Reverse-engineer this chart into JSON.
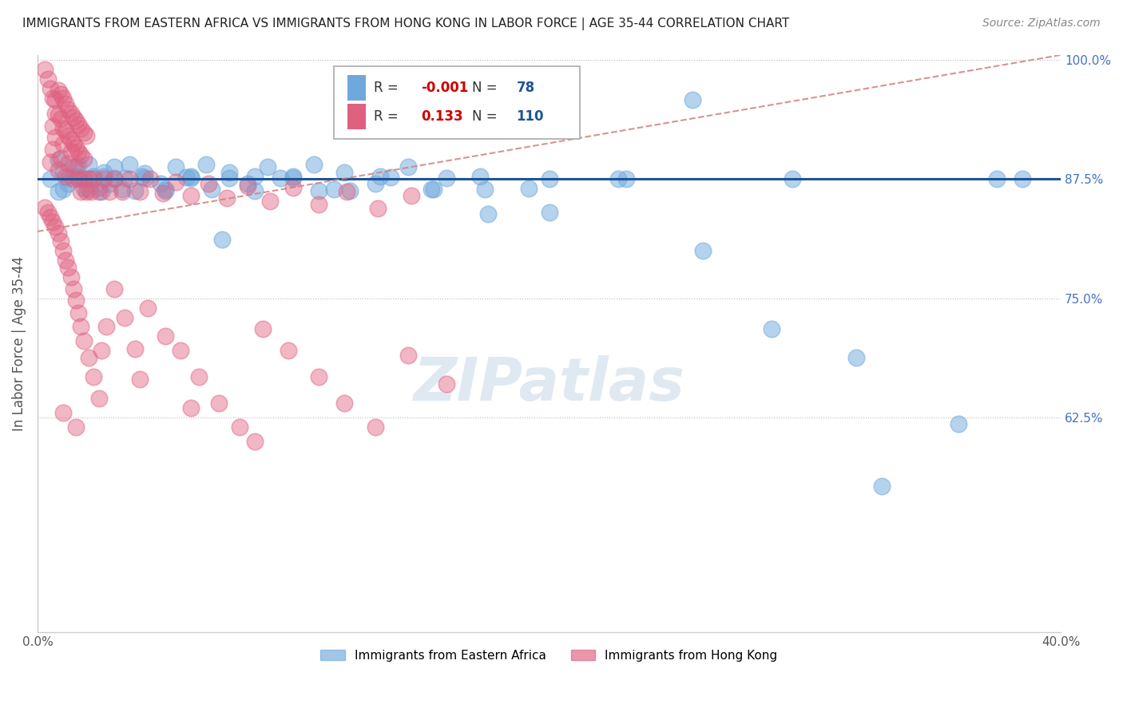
{
  "title": "IMMIGRANTS FROM EASTERN AFRICA VS IMMIGRANTS FROM HONG KONG IN LABOR FORCE | AGE 35-44 CORRELATION CHART",
  "source": "Source: ZipAtlas.com",
  "ylabel": "In Labor Force | Age 35-44",
  "legend_labels": [
    "Immigrants from Eastern Africa",
    "Immigrants from Hong Kong"
  ],
  "R_blue": -0.001,
  "N_blue": 78,
  "R_pink": 0.133,
  "N_pink": 110,
  "blue_color": "#6fa8dc",
  "pink_color": "#e06080",
  "blue_line_color": "#1f5496",
  "pink_line_color": "#d08080",
  "xmin": 0.0,
  "xmax": 0.4,
  "ymin": 0.4,
  "ymax": 1.005,
  "hline_y": 0.875,
  "watermark": "ZIPatlas",
  "yticks": [
    1.0,
    0.875,
    0.75,
    0.625
  ],
  "ytick_labels": [
    "100.0%",
    "87.5%",
    "75.0%",
    "62.5%"
  ],
  "blue_scatter_x": [
    0.005,
    0.008,
    0.01,
    0.012,
    0.014,
    0.016,
    0.018,
    0.02,
    0.022,
    0.024,
    0.026,
    0.028,
    0.03,
    0.034,
    0.038,
    0.042,
    0.048,
    0.054,
    0.06,
    0.068,
    0.075,
    0.082,
    0.09,
    0.1,
    0.11,
    0.12,
    0.132,
    0.145,
    0.16,
    0.175,
    0.008,
    0.012,
    0.016,
    0.02,
    0.025,
    0.03,
    0.036,
    0.042,
    0.05,
    0.058,
    0.066,
    0.075,
    0.085,
    0.095,
    0.108,
    0.122,
    0.138,
    0.155,
    0.173,
    0.192,
    0.01,
    0.015,
    0.02,
    0.026,
    0.033,
    0.041,
    0.05,
    0.06,
    0.072,
    0.085,
    0.1,
    0.116,
    0.134,
    0.154,
    0.176,
    0.2,
    0.227,
    0.256,
    0.287,
    0.32,
    0.2,
    0.23,
    0.26,
    0.295,
    0.33,
    0.36,
    0.385,
    0.375
  ],
  "blue_scatter_y": [
    0.875,
    0.895,
    0.882,
    0.87,
    0.888,
    0.876,
    0.865,
    0.89,
    0.878,
    0.866,
    0.882,
    0.87,
    0.888,
    0.876,
    0.863,
    0.881,
    0.87,
    0.888,
    0.876,
    0.864,
    0.882,
    0.87,
    0.888,
    0.876,
    0.863,
    0.882,
    0.87,
    0.888,
    0.876,
    0.864,
    0.862,
    0.876,
    0.889,
    0.875,
    0.862,
    0.876,
    0.89,
    0.876,
    0.863,
    0.877,
    0.89,
    0.876,
    0.863,
    0.876,
    0.89,
    0.863,
    0.877,
    0.864,
    0.878,
    0.865,
    0.864,
    0.878,
    0.864,
    0.878,
    0.864,
    0.878,
    0.864,
    0.878,
    0.812,
    0.878,
    0.878,
    0.864,
    0.878,
    0.864,
    0.838,
    0.875,
    0.875,
    0.958,
    0.718,
    0.688,
    0.84,
    0.875,
    0.8,
    0.875,
    0.553,
    0.618,
    0.875,
    0.875
  ],
  "pink_scatter_x": [
    0.003,
    0.004,
    0.005,
    0.006,
    0.006,
    0.007,
    0.007,
    0.008,
    0.008,
    0.009,
    0.009,
    0.01,
    0.01,
    0.011,
    0.011,
    0.012,
    0.012,
    0.013,
    0.013,
    0.014,
    0.014,
    0.015,
    0.015,
    0.016,
    0.016,
    0.017,
    0.017,
    0.018,
    0.018,
    0.019,
    0.005,
    0.006,
    0.007,
    0.008,
    0.009,
    0.01,
    0.011,
    0.012,
    0.013,
    0.014,
    0.015,
    0.016,
    0.017,
    0.018,
    0.019,
    0.02,
    0.021,
    0.022,
    0.024,
    0.026,
    0.028,
    0.03,
    0.033,
    0.036,
    0.04,
    0.044,
    0.049,
    0.054,
    0.06,
    0.067,
    0.074,
    0.082,
    0.091,
    0.1,
    0.11,
    0.121,
    0.133,
    0.146,
    0.003,
    0.004,
    0.005,
    0.006,
    0.007,
    0.008,
    0.009,
    0.01,
    0.011,
    0.012,
    0.013,
    0.014,
    0.015,
    0.016,
    0.017,
    0.018,
    0.02,
    0.022,
    0.024,
    0.027,
    0.03,
    0.034,
    0.038,
    0.043,
    0.05,
    0.056,
    0.063,
    0.071,
    0.079,
    0.088,
    0.098,
    0.11,
    0.12,
    0.132,
    0.145,
    0.16,
    0.01,
    0.015,
    0.025,
    0.04,
    0.06,
    0.085
  ],
  "pink_scatter_y": [
    0.99,
    0.98,
    0.97,
    0.96,
    0.93,
    0.958,
    0.944,
    0.968,
    0.942,
    0.964,
    0.938,
    0.96,
    0.928,
    0.954,
    0.926,
    0.948,
    0.92,
    0.944,
    0.916,
    0.94,
    0.912,
    0.936,
    0.908,
    0.932,
    0.904,
    0.928,
    0.9,
    0.924,
    0.896,
    0.92,
    0.893,
    0.906,
    0.919,
    0.884,
    0.897,
    0.912,
    0.878,
    0.891,
    0.904,
    0.875,
    0.888,
    0.875,
    0.862,
    0.875,
    0.862,
    0.875,
    0.862,
    0.875,
    0.862,
    0.875,
    0.862,
    0.875,
    0.862,
    0.875,
    0.862,
    0.875,
    0.86,
    0.872,
    0.858,
    0.87,
    0.855,
    0.868,
    0.852,
    0.866,
    0.848,
    0.862,
    0.844,
    0.858,
    0.845,
    0.84,
    0.835,
    0.83,
    0.825,
    0.818,
    0.81,
    0.8,
    0.79,
    0.782,
    0.772,
    0.76,
    0.748,
    0.735,
    0.72,
    0.705,
    0.688,
    0.668,
    0.645,
    0.72,
    0.76,
    0.73,
    0.697,
    0.74,
    0.71,
    0.695,
    0.668,
    0.64,
    0.615,
    0.718,
    0.695,
    0.668,
    0.64,
    0.615,
    0.69,
    0.66,
    0.63,
    0.615,
    0.695,
    0.665,
    0.635,
    0.6
  ],
  "pink_trend_x0": 0.0,
  "pink_trend_y0": 0.82,
  "pink_trend_x1": 0.4,
  "pink_trend_y1": 1.005
}
